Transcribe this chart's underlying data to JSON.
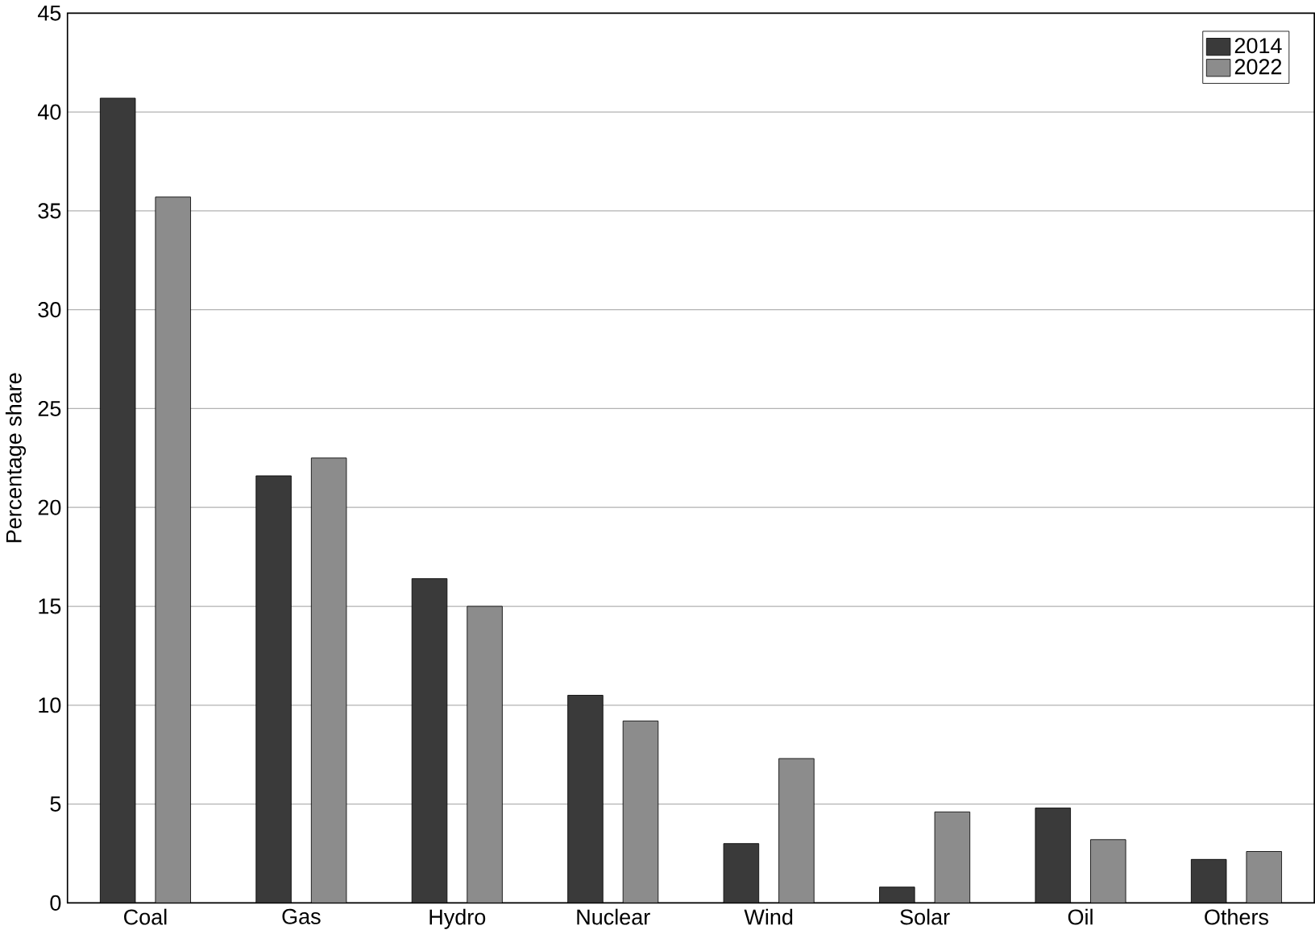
{
  "chart_data": {
    "type": "bar",
    "ylabel": "Percentage share",
    "categories": [
      "Coal",
      "Gas",
      "Hydro",
      "Nuclear",
      "Wind",
      "Solar",
      "Oil",
      "Others"
    ],
    "series": [
      {
        "name": "2014",
        "color": "#3a3a3a",
        "values": [
          40.7,
          21.6,
          16.4,
          10.5,
          3.0,
          0.8,
          4.8,
          2.2
        ]
      },
      {
        "name": "2022",
        "color": "#8c8c8c",
        "values": [
          35.7,
          22.5,
          15.0,
          9.2,
          7.3,
          4.6,
          3.2,
          2.6
        ]
      }
    ],
    "ylim": [
      0,
      45
    ],
    "yticks": [
      0,
      5,
      10,
      15,
      20,
      25,
      30,
      35,
      40,
      45
    ],
    "grid": "y",
    "legend": "top right"
  }
}
